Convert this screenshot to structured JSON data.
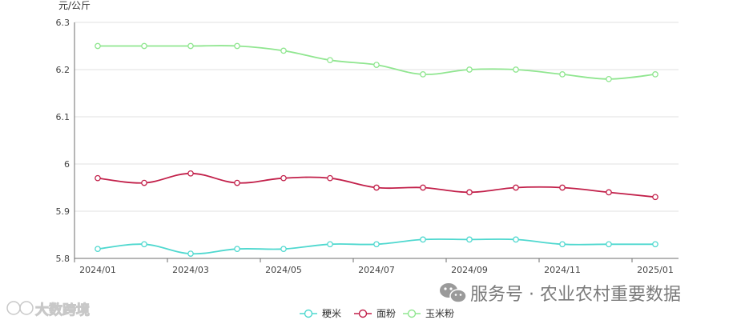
{
  "chart_data": {
    "type": "line",
    "y_unit": "元/公斤",
    "ylim": [
      5.8,
      6.3
    ],
    "y_ticks": [
      "5.8",
      "5.9",
      "6",
      "6.1",
      "6.2",
      "6.3"
    ],
    "x_tick_labels": [
      "2024/01",
      "2024/03",
      "2024/05",
      "2024/07",
      "2024/09",
      "2024/11",
      "2025/01"
    ],
    "x": [
      "2024/01",
      "2024/02",
      "2024/03",
      "2024/04",
      "2024/05",
      "2024/06",
      "2024/07",
      "2024/08",
      "2024/09",
      "2024/10",
      "2024/11",
      "2024/12",
      "2025/01"
    ],
    "grid": true,
    "legend_position": "bottom-center",
    "series": [
      {
        "name": "粳米",
        "color": "#4fd8cf",
        "values": [
          5.82,
          5.83,
          5.81,
          5.82,
          5.82,
          5.83,
          5.83,
          5.84,
          5.84,
          5.84,
          5.83,
          5.83,
          5.83
        ]
      },
      {
        "name": "面粉",
        "color": "#c2204a",
        "values": [
          5.97,
          5.96,
          5.98,
          5.96,
          5.97,
          5.97,
          5.95,
          5.95,
          5.94,
          5.95,
          5.95,
          5.94,
          5.93
        ]
      },
      {
        "name": "玉米粉",
        "color": "#90e690",
        "values": [
          6.25,
          6.25,
          6.25,
          6.25,
          6.24,
          6.22,
          6.21,
          6.19,
          6.2,
          6.2,
          6.19,
          6.18,
          6.19
        ]
      }
    ]
  },
  "watermark": {
    "wechat_text": "服务号 · 农业农村重要数据",
    "left_text": "大数跨境",
    "wechat_icon": "wechat-icon",
    "left_icon": "brand-logo-icon"
  }
}
